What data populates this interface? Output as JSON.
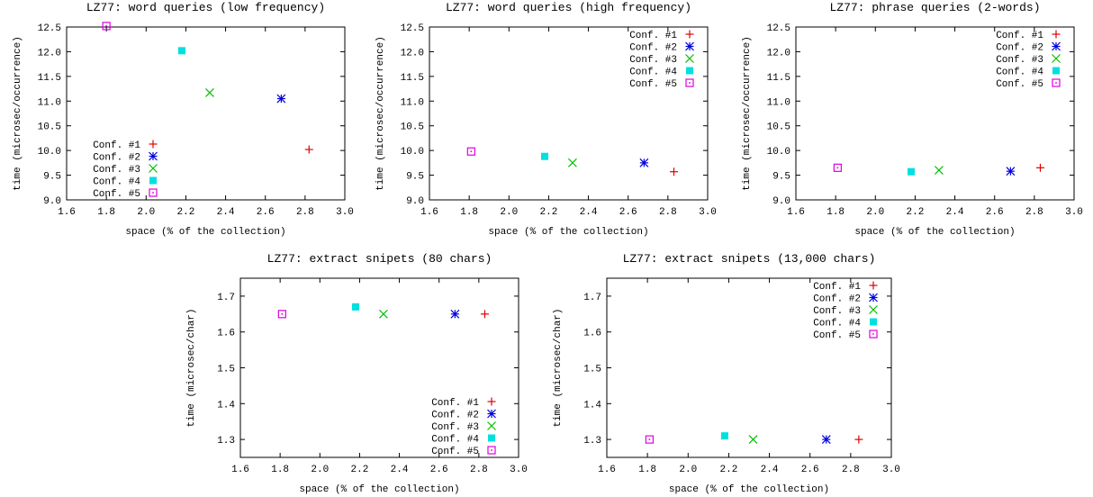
{
  "colors": {
    "conf1": "#e00000",
    "conf2": "#0000e0",
    "conf3": "#00c000",
    "conf4": "#00e0e0",
    "conf5": "#e000e0"
  },
  "chart_data": [
    {
      "type": "scatter",
      "title": "LZ77: word queries (low frequency)",
      "xlabel": "space (% of the collection)",
      "ylabel": "time (microsec/occurrence)",
      "xlim": [
        1.6,
        3.0
      ],
      "ylim": [
        9.0,
        12.5
      ],
      "xticks": [
        "1.6",
        "1.8",
        "2.0",
        "2.2",
        "2.4",
        "2.6",
        "2.8",
        "3.0"
      ],
      "yticks": [
        "9.0",
        "9.5",
        "10.0",
        "10.5",
        "11.0",
        "11.5",
        "12.0",
        "12.5"
      ],
      "legend_position": "bottom-left",
      "series": [
        {
          "name": "Conf. #1",
          "marker": "plus",
          "color": "conf1",
          "x": [
            2.82
          ],
          "y": [
            10.02
          ]
        },
        {
          "name": "Conf. #2",
          "marker": "star",
          "color": "conf2",
          "x": [
            2.68
          ],
          "y": [
            11.05
          ]
        },
        {
          "name": "Conf. #3",
          "marker": "cross",
          "color": "conf3",
          "x": [
            2.32
          ],
          "y": [
            11.17
          ]
        },
        {
          "name": "Conf. #4",
          "marker": "square-filled",
          "color": "conf4",
          "x": [
            2.18
          ],
          "y": [
            12.02
          ]
        },
        {
          "name": "Conf. #5",
          "marker": "square-dot",
          "color": "conf5",
          "x": [
            1.8
          ],
          "y": [
            12.52
          ]
        }
      ]
    },
    {
      "type": "scatter",
      "title": "LZ77: word queries (high frequency)",
      "xlabel": "space (% of the collection)",
      "ylabel": "time (microsec/occurrence)",
      "xlim": [
        1.6,
        3.0
      ],
      "ylim": [
        9.0,
        12.5
      ],
      "xticks": [
        "1.6",
        "1.8",
        "2.0",
        "2.2",
        "2.4",
        "2.6",
        "2.8",
        "3.0"
      ],
      "yticks": [
        "9.0",
        "9.5",
        "10.0",
        "10.5",
        "11.0",
        "11.5",
        "12.0",
        "12.5"
      ],
      "legend_position": "top-right",
      "series": [
        {
          "name": "Conf. #1",
          "marker": "plus",
          "color": "conf1",
          "x": [
            2.83
          ],
          "y": [
            9.57
          ]
        },
        {
          "name": "Conf. #2",
          "marker": "star",
          "color": "conf2",
          "x": [
            2.68
          ],
          "y": [
            9.75
          ]
        },
        {
          "name": "Conf. #3",
          "marker": "cross",
          "color": "conf3",
          "x": [
            2.32
          ],
          "y": [
            9.75
          ]
        },
        {
          "name": "Conf. #4",
          "marker": "square-filled",
          "color": "conf4",
          "x": [
            2.18
          ],
          "y": [
            9.88
          ]
        },
        {
          "name": "Conf. #5",
          "marker": "square-dot",
          "color": "conf5",
          "x": [
            1.81
          ],
          "y": [
            9.98
          ]
        }
      ]
    },
    {
      "type": "scatter",
      "title": "LZ77: phrase queries (2-words)",
      "xlabel": "space (% of the collection)",
      "ylabel": "time (microsec/occurrence)",
      "xlim": [
        1.6,
        3.0
      ],
      "ylim": [
        9.0,
        12.5
      ],
      "xticks": [
        "1.6",
        "1.8",
        "2.0",
        "2.2",
        "2.4",
        "2.6",
        "2.8",
        "3.0"
      ],
      "yticks": [
        "9.0",
        "9.5",
        "10.0",
        "10.5",
        "11.0",
        "11.5",
        "12.0",
        "12.5"
      ],
      "legend_position": "top-right",
      "series": [
        {
          "name": "Conf. #1",
          "marker": "plus",
          "color": "conf1",
          "x": [
            2.83
          ],
          "y": [
            9.65
          ]
        },
        {
          "name": "Conf. #2",
          "marker": "star",
          "color": "conf2",
          "x": [
            2.68
          ],
          "y": [
            9.58
          ]
        },
        {
          "name": "Conf. #3",
          "marker": "cross",
          "color": "conf3",
          "x": [
            2.32
          ],
          "y": [
            9.6
          ]
        },
        {
          "name": "Conf. #4",
          "marker": "square-filled",
          "color": "conf4",
          "x": [
            2.18
          ],
          "y": [
            9.57
          ]
        },
        {
          "name": "Conf. #5",
          "marker": "square-dot",
          "color": "conf5",
          "x": [
            1.81
          ],
          "y": [
            9.65
          ]
        }
      ]
    },
    {
      "type": "scatter",
      "title": "LZ77: extract snipets (80 chars)",
      "xlabel": "space (% of the collection)",
      "ylabel": "time (microsec/char)",
      "xlim": [
        1.6,
        3.0
      ],
      "ylim": [
        1.25,
        1.75
      ],
      "xticks": [
        "1.6",
        "1.8",
        "2.0",
        "2.2",
        "2.4",
        "2.6",
        "2.8",
        "3.0"
      ],
      "yticks": [
        "1.3",
        "1.4",
        "1.5",
        "1.6",
        "1.7"
      ],
      "legend_position": "bottom-right",
      "series": [
        {
          "name": "Conf. #1",
          "marker": "plus",
          "color": "conf1",
          "x": [
            2.83
          ],
          "y": [
            1.65
          ]
        },
        {
          "name": "Conf. #2",
          "marker": "star",
          "color": "conf2",
          "x": [
            2.68
          ],
          "y": [
            1.65
          ]
        },
        {
          "name": "Conf. #3",
          "marker": "cross",
          "color": "conf3",
          "x": [
            2.32
          ],
          "y": [
            1.65
          ]
        },
        {
          "name": "Conf. #4",
          "marker": "square-filled",
          "color": "conf4",
          "x": [
            2.18
          ],
          "y": [
            1.67
          ]
        },
        {
          "name": "Conf. #5",
          "marker": "square-dot",
          "color": "conf5",
          "x": [
            1.81
          ],
          "y": [
            1.65
          ]
        }
      ]
    },
    {
      "type": "scatter",
      "title": "LZ77: extract snipets (13,000 chars)",
      "xlabel": "space (% of the collection)",
      "ylabel": "time (microsec/char)",
      "xlim": [
        1.6,
        3.0
      ],
      "ylim": [
        1.25,
        1.75
      ],
      "xticks": [
        "1.6",
        "1.8",
        "2.0",
        "2.2",
        "2.4",
        "2.6",
        "2.8",
        "3.0"
      ],
      "yticks": [
        "1.3",
        "1.4",
        "1.5",
        "1.6",
        "1.7"
      ],
      "legend_position": "top-right",
      "series": [
        {
          "name": "Conf. #1",
          "marker": "plus",
          "color": "conf1",
          "x": [
            2.84
          ],
          "y": [
            1.3
          ]
        },
        {
          "name": "Conf. #2",
          "marker": "star",
          "color": "conf2",
          "x": [
            2.68
          ],
          "y": [
            1.3
          ]
        },
        {
          "name": "Conf. #3",
          "marker": "cross",
          "color": "conf3",
          "x": [
            2.32
          ],
          "y": [
            1.3
          ]
        },
        {
          "name": "Conf. #4",
          "marker": "square-filled",
          "color": "conf4",
          "x": [
            2.18
          ],
          "y": [
            1.31
          ]
        },
        {
          "name": "Conf. #5",
          "marker": "square-dot",
          "color": "conf5",
          "x": [
            1.81
          ],
          "y": [
            1.3
          ]
        }
      ]
    }
  ]
}
